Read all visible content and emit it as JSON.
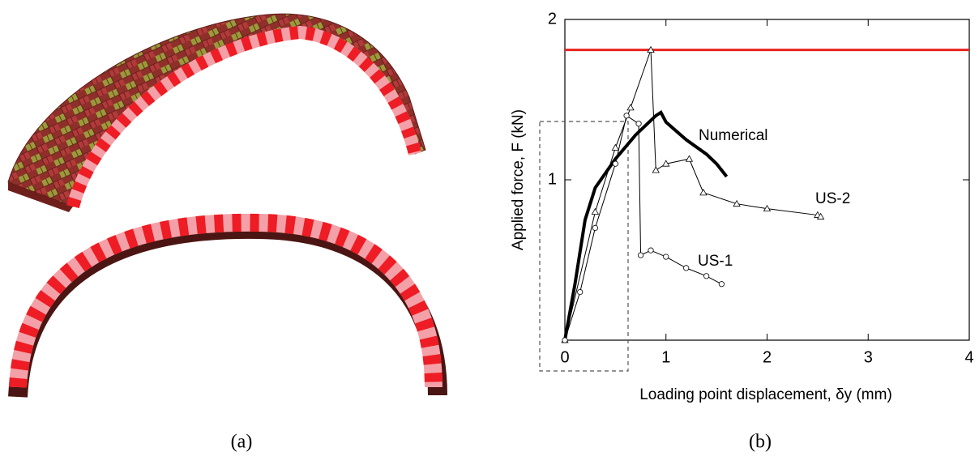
{
  "chart_data": {
    "type": "line",
    "x_label": "Loading point displacement, δy (mm)",
    "y_label": "Applied force, F (kN)",
    "xlim": [
      0,
      4
    ],
    "xticks": [
      0,
      1,
      2,
      3,
      4
    ],
    "ylim": [
      0,
      2
    ],
    "yticks": [
      1,
      2
    ],
    "hline": {
      "value": 1.81,
      "color": "#e8231f"
    },
    "series": [
      {
        "name": "Numerical",
        "color": "#000000",
        "marker": "none",
        "x": [
          0,
          0.1,
          0.2,
          0.3,
          0.5,
          0.7,
          0.9,
          0.95,
          1.0,
          1.2,
          1.4,
          1.5,
          1.6
        ],
        "values": [
          0,
          0.35,
          0.75,
          0.95,
          1.13,
          1.28,
          1.4,
          1.42,
          1.36,
          1.25,
          1.16,
          1.1,
          1.02
        ]
      },
      {
        "name": "US-2",
        "color": "#000000",
        "marker": "triangle",
        "x": [
          0,
          0.3,
          0.5,
          0.65,
          0.85,
          0.9,
          1.0,
          1.23,
          1.37,
          1.7,
          2.0,
          2.5,
          2.53
        ],
        "values": [
          0,
          0.8,
          1.2,
          1.45,
          1.81,
          1.06,
          1.1,
          1.13,
          0.92,
          0.85,
          0.82,
          0.78,
          0.77
        ]
      },
      {
        "name": "US-1",
        "color": "#000000",
        "marker": "circle",
        "x": [
          0,
          0.15,
          0.3,
          0.5,
          0.61,
          0.73,
          0.75,
          0.85,
          1.0,
          1.2,
          1.4,
          1.55
        ],
        "values": [
          0,
          0.3,
          0.7,
          1.1,
          1.4,
          1.35,
          0.53,
          0.56,
          0.52,
          0.45,
          0.4,
          0.35
        ]
      }
    ]
  },
  "captions": [
    "(a)",
    "(b)"
  ]
}
